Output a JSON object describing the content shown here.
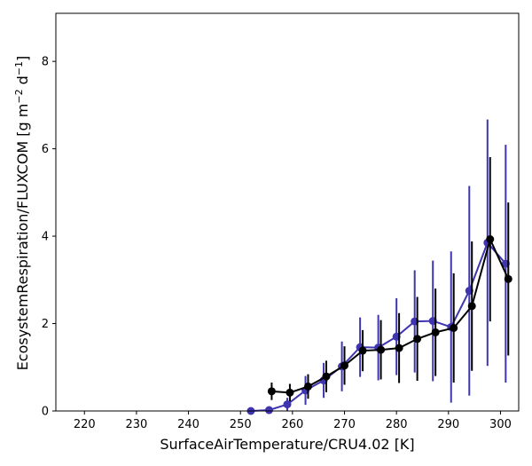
{
  "chart_data": {
    "type": "line",
    "xlabel": "SurfaceAirTemperature/CRU4.02 [K]",
    "ylabel_main": "EcosystemRespiration/FLUXCOM [g m",
    "ylabel_sup1": "−2",
    "ylabel_mid": " d",
    "ylabel_sup2": "−1",
    "ylabel_end": "]",
    "xlim": [
      214.5,
      303.5
    ],
    "ylim": [
      0,
      9.1
    ],
    "xticks": [
      "220",
      "230",
      "240",
      "250",
      "260",
      "270",
      "280",
      "290",
      "300"
    ],
    "xtick_values": [
      220,
      230,
      240,
      250,
      260,
      270,
      280,
      290,
      300
    ],
    "yticks": [
      "0",
      "2",
      "4",
      "6",
      "8"
    ],
    "ytick_values": [
      0,
      2,
      4,
      6,
      8
    ],
    "grid": false,
    "legend": false,
    "series": [
      {
        "color": "#3f35b0",
        "points": [
          {
            "x": 252.0,
            "y": 0.0,
            "err": 0.0
          },
          {
            "x": 255.5,
            "y": 0.02,
            "err": 0.02
          },
          {
            "x": 259.0,
            "y": 0.15,
            "err": 0.15
          },
          {
            "x": 262.5,
            "y": 0.47,
            "err": 0.33
          },
          {
            "x": 266.0,
            "y": 0.7,
            "err": 0.4
          },
          {
            "x": 269.5,
            "y": 1.02,
            "err": 0.57
          },
          {
            "x": 273.0,
            "y": 1.46,
            "err": 0.68
          },
          {
            "x": 276.5,
            "y": 1.45,
            "err": 0.75
          },
          {
            "x": 280.0,
            "y": 1.7,
            "err": 0.88
          },
          {
            "x": 283.5,
            "y": 2.05,
            "err": 1.17
          },
          {
            "x": 287.0,
            "y": 2.06,
            "err": 1.38
          },
          {
            "x": 290.5,
            "y": 1.92,
            "err": 1.73
          },
          {
            "x": 294.0,
            "y": 2.75,
            "err": 2.4
          },
          {
            "x": 297.5,
            "y": 3.85,
            "err": 2.82
          },
          {
            "x": 301.0,
            "y": 3.37,
            "err": 2.72
          }
        ]
      },
      {
        "color": "#000000",
        "points": [
          {
            "x": 256.0,
            "y": 0.45,
            "err": 0.2
          },
          {
            "x": 259.5,
            "y": 0.42,
            "err": 0.2
          },
          {
            "x": 263.0,
            "y": 0.56,
            "err": 0.28
          },
          {
            "x": 266.5,
            "y": 0.79,
            "err": 0.36
          },
          {
            "x": 270.0,
            "y": 1.04,
            "err": 0.44
          },
          {
            "x": 273.5,
            "y": 1.38,
            "err": 0.47
          },
          {
            "x": 277.0,
            "y": 1.4,
            "err": 0.68
          },
          {
            "x": 280.5,
            "y": 1.44,
            "err": 0.8
          },
          {
            "x": 284.0,
            "y": 1.65,
            "err": 0.96
          },
          {
            "x": 287.5,
            "y": 1.8,
            "err": 1.0
          },
          {
            "x": 291.0,
            "y": 1.9,
            "err": 1.25
          },
          {
            "x": 294.5,
            "y": 2.4,
            "err": 1.48
          },
          {
            "x": 298.0,
            "y": 3.93,
            "err": 1.88
          },
          {
            "x": 301.5,
            "y": 3.02,
            "err": 1.75
          }
        ]
      }
    ]
  }
}
